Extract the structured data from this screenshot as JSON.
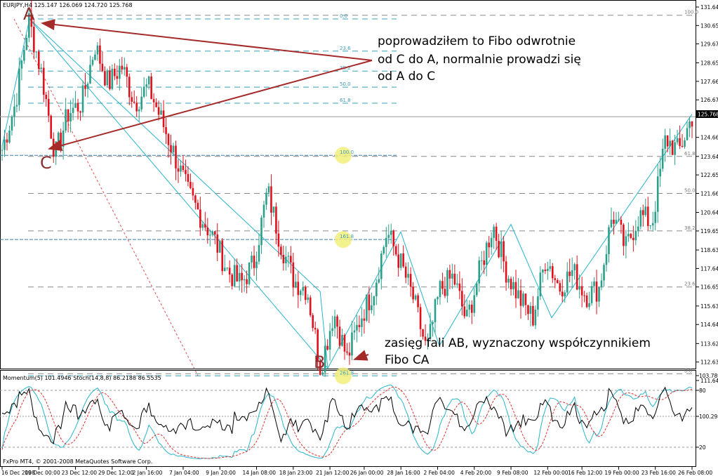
{
  "header": {
    "symbol": "EURJPY,H4",
    "open": "125.147",
    "high": "126.069",
    "low": "124.720",
    "close": "125.768"
  },
  "indicators": {
    "momentum_label": "Momentum(5)",
    "momentum_value": "101.4946",
    "stoch_label": "Stoch(14,8,8)",
    "stoch_main": "86.2188",
    "stoch_signal": "86.5535",
    "copyright": "FxPro MT4, © 2001-2008 MetaQuotes Software Corp.",
    "axis_ticks": [
      "103.7897",
      "80",
      "100.2986",
      "20"
    ]
  },
  "annotations": {
    "point_a": "A",
    "point_b": "B",
    "point_c": "C",
    "text1": [
      "poprowadziłem to Fibo odwrotnie",
      "od C do A, normalnie prowadzi się",
      "od A do C"
    ],
    "text2": [
      "zasięg fali AB, wyznaczony współczynnikiem",
      "Fibo CA"
    ]
  },
  "colors": {
    "bull": "#2a9f8a",
    "bear": "#e0101c",
    "cyan": "#27b5cc",
    "arrow": "#a52a2a",
    "fib_gray": "#808080",
    "fib_left": "#3a9ab8",
    "circle": "#f2f07a"
  },
  "chart_data": {
    "type": "candlestick",
    "title": "EURJPY,H4",
    "y_ticks": [
      131.64,
      130.65,
      129.67,
      128.65,
      127.66,
      126.67,
      125.768,
      124.66,
      123.64,
      122.65,
      121.66,
      120.64,
      119.65,
      118.63,
      117.64,
      116.65,
      115.63,
      114.64,
      113.62,
      112.63,
      111.64
    ],
    "x_labels": [
      "16 Dec 2008",
      "19 Dec 00:00",
      "23 Dec 12:00",
      "29 Dec 12:00",
      "2 Jan 16:00",
      "7 Jan 04:00",
      "9 Jan 20:00",
      "14 Jan 08:00",
      "18 Jan 23:00",
      "21 Jan 12:00",
      "26 Jan 00:00",
      "28 Jan 16:00",
      "2 Feb 04:00",
      "4 Feb 20:00",
      "9 Feb 08:00",
      "12 Feb 00:00",
      "16 Feb 12:00",
      "19 Feb 00:00",
      "23 Feb 16:00",
      "26 Feb 08:00"
    ],
    "swings": [
      {
        "label": "A",
        "price": 131.0
      },
      {
        "label": "C",
        "price": 123.7
      },
      {
        "label": "B",
        "price": 112.3
      }
    ],
    "path": [
      124.0,
      126.5,
      131.0,
      128.0,
      123.7,
      126.0,
      126.5,
      129.6,
      127.5,
      128.5,
      126.5,
      127.4,
      125.6,
      123.7,
      121.7,
      120.4,
      119.2,
      117.5,
      116.8,
      118.0,
      121.8,
      119.0,
      117.0,
      116.5,
      112.3,
      115.3,
      112.8,
      115.0,
      116.5,
      119.6,
      118.0,
      116.0,
      113.2,
      116.5,
      117.2,
      114.8,
      117.5,
      120.0,
      117.5,
      116.0,
      115.0,
      118.3,
      116.6,
      117.5,
      116.2,
      116.6,
      120.6,
      118.7,
      120.5,
      120.1,
      124.6,
      123.9,
      125.768
    ],
    "fib_left": {
      "levels": [
        "0.0",
        "23.6",
        "38.2",
        "50.0",
        "61.8",
        "100.0",
        "161.8",
        "261.8"
      ],
      "prices": [
        131.0,
        129.28,
        128.21,
        127.35,
        126.49,
        123.7,
        119.19,
        111.89
      ]
    },
    "fib_right": {
      "levels": [
        "100.0",
        "61.8",
        "50.0",
        "38.2",
        "23.6",
        "0.0"
      ],
      "prices": [
        131.2,
        123.64,
        121.66,
        119.65,
        116.65,
        112.0
      ]
    }
  }
}
